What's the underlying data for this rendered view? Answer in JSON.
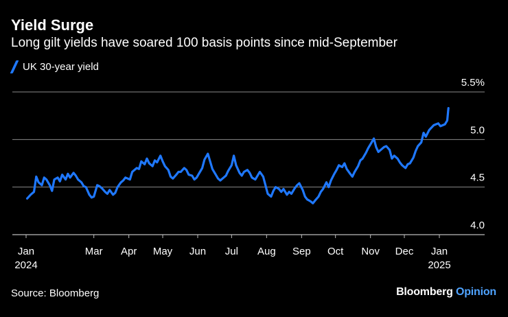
{
  "title": "Yield Surge",
  "subtitle": "Long gilt yields have soared 100 basis points since mid-September",
  "source": "Source: Bloomberg",
  "brand": {
    "name": "Bloomberg",
    "suffix": "Opinion"
  },
  "colors": {
    "line": "#1f78ff",
    "background": "#000000",
    "grid": "#8a8a8a",
    "brand_accent": "#4fa3ff"
  },
  "chart_data": {
    "type": "line",
    "ylim": [
      4.0,
      5.5
    ],
    "y_ticks": [
      {
        "value": 4.0,
        "label": "4.0"
      },
      {
        "value": 4.5,
        "label": "4.5"
      },
      {
        "value": 5.0,
        "label": "5.0"
      },
      {
        "value": 5.5,
        "label": "5.5%"
      }
    ],
    "x_ticks": [
      {
        "date": "2024-01-01",
        "label": "Jan",
        "sublabel": "2024"
      },
      {
        "date": "2024-03-01",
        "label": "Mar"
      },
      {
        "date": "2024-04-01",
        "label": "Apr"
      },
      {
        "date": "2024-05-01",
        "label": "May"
      },
      {
        "date": "2024-06-01",
        "label": "Jun"
      },
      {
        "date": "2024-07-01",
        "label": "Jul"
      },
      {
        "date": "2024-08-01",
        "label": "Aug"
      },
      {
        "date": "2024-09-01",
        "label": "Sep"
      },
      {
        "date": "2024-10-01",
        "label": "Oct"
      },
      {
        "date": "2024-11-01",
        "label": "Nov"
      },
      {
        "date": "2024-12-01",
        "label": "Dec"
      },
      {
        "date": "2025-01-01",
        "label": "Jan",
        "sublabel": "2025"
      }
    ],
    "grid": true,
    "legend_position": "top-left",
    "series": [
      {
        "name": "UK 30-year yield",
        "x": [
          "2024-01-02",
          "2024-01-05",
          "2024-01-08",
          "2024-01-10",
          "2024-01-12",
          "2024-01-15",
          "2024-01-17",
          "2024-01-19",
          "2024-01-22",
          "2024-01-24",
          "2024-01-26",
          "2024-01-29",
          "2024-01-31",
          "2024-02-02",
          "2024-02-05",
          "2024-02-07",
          "2024-02-09",
          "2024-02-12",
          "2024-02-14",
          "2024-02-16",
          "2024-02-19",
          "2024-02-21",
          "2024-02-23",
          "2024-02-26",
          "2024-02-28",
          "2024-03-01",
          "2024-03-04",
          "2024-03-06",
          "2024-03-08",
          "2024-03-11",
          "2024-03-13",
          "2024-03-15",
          "2024-03-18",
          "2024-03-20",
          "2024-03-22",
          "2024-03-25",
          "2024-03-27",
          "2024-03-29",
          "2024-04-02",
          "2024-04-04",
          "2024-04-08",
          "2024-04-10",
          "2024-04-12",
          "2024-04-15",
          "2024-04-17",
          "2024-04-19",
          "2024-04-22",
          "2024-04-24",
          "2024-04-26",
          "2024-04-29",
          "2024-05-01",
          "2024-05-03",
          "2024-05-06",
          "2024-05-08",
          "2024-05-10",
          "2024-05-13",
          "2024-05-15",
          "2024-05-17",
          "2024-05-20",
          "2024-05-22",
          "2024-05-24",
          "2024-05-27",
          "2024-05-29",
          "2024-05-31",
          "2024-06-03",
          "2024-06-05",
          "2024-06-07",
          "2024-06-10",
          "2024-06-12",
          "2024-06-14",
          "2024-06-17",
          "2024-06-19",
          "2024-06-21",
          "2024-06-24",
          "2024-06-26",
          "2024-06-28",
          "2024-07-01",
          "2024-07-03",
          "2024-07-05",
          "2024-07-08",
          "2024-07-10",
          "2024-07-12",
          "2024-07-15",
          "2024-07-17",
          "2024-07-19",
          "2024-07-22",
          "2024-07-24",
          "2024-07-26",
          "2024-07-29",
          "2024-07-31",
          "2024-08-02",
          "2024-08-05",
          "2024-08-07",
          "2024-08-09",
          "2024-08-12",
          "2024-08-14",
          "2024-08-16",
          "2024-08-19",
          "2024-08-21",
          "2024-08-23",
          "2024-08-26",
          "2024-08-28",
          "2024-08-30",
          "2024-09-02",
          "2024-09-04",
          "2024-09-06",
          "2024-09-09",
          "2024-09-11",
          "2024-09-13",
          "2024-09-16",
          "2024-09-18",
          "2024-09-20",
          "2024-09-23",
          "2024-09-25",
          "2024-09-27",
          "2024-09-30",
          "2024-10-02",
          "2024-10-04",
          "2024-10-07",
          "2024-10-09",
          "2024-10-11",
          "2024-10-14",
          "2024-10-16",
          "2024-10-18",
          "2024-10-21",
          "2024-10-23",
          "2024-10-25",
          "2024-10-28",
          "2024-10-30",
          "2024-11-01",
          "2024-11-04",
          "2024-11-06",
          "2024-11-08",
          "2024-11-11",
          "2024-11-13",
          "2024-11-15",
          "2024-11-18",
          "2024-11-20",
          "2024-11-22",
          "2024-11-25",
          "2024-11-27",
          "2024-11-29",
          "2024-12-02",
          "2024-12-04",
          "2024-12-06",
          "2024-12-09",
          "2024-12-11",
          "2024-12-13",
          "2024-12-16",
          "2024-12-18",
          "2024-12-20",
          "2024-12-23",
          "2024-12-27",
          "2024-12-31",
          "2025-01-02",
          "2025-01-06",
          "2025-01-08",
          "2025-01-09"
        ],
        "y": [
          4.38,
          4.42,
          4.45,
          4.61,
          4.55,
          4.52,
          4.6,
          4.58,
          4.52,
          4.46,
          4.58,
          4.6,
          4.56,
          4.63,
          4.58,
          4.64,
          4.6,
          4.65,
          4.62,
          4.58,
          4.55,
          4.51,
          4.5,
          4.42,
          4.39,
          4.4,
          4.52,
          4.51,
          4.49,
          4.45,
          4.43,
          4.47,
          4.42,
          4.44,
          4.5,
          4.55,
          4.57,
          4.6,
          4.58,
          4.66,
          4.7,
          4.69,
          4.77,
          4.74,
          4.8,
          4.75,
          4.72,
          4.78,
          4.76,
          4.83,
          4.77,
          4.72,
          4.68,
          4.61,
          4.59,
          4.63,
          4.66,
          4.66,
          4.7,
          4.68,
          4.63,
          4.62,
          4.58,
          4.6,
          4.66,
          4.7,
          4.79,
          4.85,
          4.77,
          4.69,
          4.63,
          4.59,
          4.57,
          4.6,
          4.62,
          4.67,
          4.73,
          4.83,
          4.73,
          4.65,
          4.62,
          4.66,
          4.68,
          4.65,
          4.6,
          4.58,
          4.62,
          4.66,
          4.61,
          4.52,
          4.43,
          4.4,
          4.46,
          4.5,
          4.48,
          4.45,
          4.48,
          4.42,
          4.45,
          4.43,
          4.49,
          4.52,
          4.54,
          4.47,
          4.4,
          4.37,
          4.35,
          4.33,
          4.36,
          4.4,
          4.45,
          4.48,
          4.55,
          4.5,
          4.57,
          4.64,
          4.68,
          4.73,
          4.71,
          4.75,
          4.69,
          4.64,
          4.61,
          4.66,
          4.72,
          4.78,
          4.8,
          4.86,
          4.91,
          4.95,
          5.01,
          4.92,
          4.87,
          4.9,
          4.92,
          4.93,
          4.89,
          4.8,
          4.83,
          4.8,
          4.76,
          4.73,
          4.7,
          4.74,
          4.75,
          4.81,
          4.88,
          4.93,
          4.97,
          5.07,
          5.03,
          5.1,
          5.15,
          5.17,
          5.14,
          5.16,
          5.2,
          5.33
        ]
      }
    ]
  }
}
